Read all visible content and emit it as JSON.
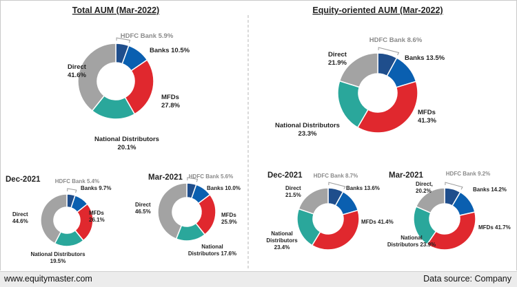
{
  "colors": {
    "hdfc": "#1f4e8c",
    "banks": "#0a5fb0",
    "mfds": "#e0282e",
    "national": "#2aa79b",
    "direct": "#a3a3a3",
    "hdfc_label": "#8a8a8a",
    "text": "#222222"
  },
  "footer": {
    "left": "www.equitymaster.com",
    "right": "Data source: Company"
  },
  "chart_data": [
    {
      "type": "pie",
      "id": "total-mar22",
      "title": "Total AUM (Mar-2022)",
      "labels": [
        "HDFC Bank",
        "Banks",
        "MFDs",
        "National Distributors",
        "Direct"
      ],
      "values": [
        5.9,
        10.5,
        27.8,
        20.1,
        41.6
      ],
      "label_text": [
        "HDFC Bank 5.9%",
        "Banks 10.5%",
        "MFDs 27.8%",
        "National Distributors 20.1%",
        "Direct 41.6%"
      ]
    },
    {
      "type": "pie",
      "id": "equity-mar22",
      "title": "Equity-oriented AUM  (Mar-2022)",
      "labels": [
        "HDFC Bank",
        "Banks",
        "MFDs",
        "National Distributors",
        "Direct"
      ],
      "values": [
        8.6,
        13.5,
        41.3,
        23.3,
        21.9
      ],
      "label_text": [
        "HDFC Bank 8.6%",
        "Banks 13.5%",
        "MFDs 41.3%",
        "National Distributors 23.3%",
        "Direct 21.9%"
      ]
    },
    {
      "type": "pie",
      "id": "total-dec21",
      "title": "Dec-2021",
      "labels": [
        "HDFC Bank",
        "Banks",
        "MFDs",
        "National Distributors",
        "Direct"
      ],
      "values": [
        5.4,
        9.7,
        26.1,
        19.5,
        44.6
      ],
      "label_text": [
        "HDFC Bank 5.4%",
        "Banks 9.7%",
        "MFDs 26.1%",
        "National Distributors 19.5%",
        "Direct 44.6%"
      ]
    },
    {
      "type": "pie",
      "id": "total-mar21",
      "title": "Mar-2021",
      "labels": [
        "HDFC Bank",
        "Banks",
        "MFDs",
        "National Distributors",
        "Direct"
      ],
      "values": [
        5.6,
        10.0,
        25.9,
        17.6,
        46.5
      ],
      "label_text": [
        "HDFC Bank 5.6%",
        "Banks 10.0%",
        "MFDs 25.9%",
        "National Distributors 17.6%",
        "Direct 46.5%"
      ]
    },
    {
      "type": "pie",
      "id": "equity-dec21",
      "title": "Dec-2021",
      "labels": [
        "HDFC Bank",
        "Banks",
        "MFDs",
        "National Distributors",
        "Direct"
      ],
      "values": [
        8.7,
        13.6,
        41.4,
        23.4,
        21.5
      ],
      "label_text": [
        "HDFC Bank 8.7%",
        "Banks 13.6%",
        "MFDs 41.4%",
        "National Distributors 23.4%",
        "Direct 21.5%"
      ]
    },
    {
      "type": "pie",
      "id": "equity-mar21",
      "title": "Mar-2021",
      "labels": [
        "HDFC Bank",
        "Banks",
        "MFDs",
        "National Distributors",
        "Direct"
      ],
      "values": [
        9.2,
        14.2,
        41.7,
        23.9,
        20.2
      ],
      "label_text": [
        "HDFC Bank 9.2%",
        "Banks 14.2%",
        "MFDs 41.7%",
        "National Distributors 23.9%",
        "Direct, 20.2%"
      ]
    }
  ]
}
